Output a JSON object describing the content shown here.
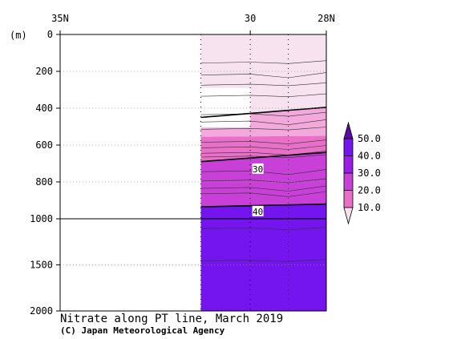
{
  "chart_data": {
    "type": "heatmap",
    "title": "Nitrate along PT line, March 2019",
    "credit": "(C) Japan Meteorological Agency",
    "x_axis": {
      "ticks": [
        {
          "value": 35,
          "label": "35N"
        },
        {
          "value": 30,
          "label": "30"
        },
        {
          "value": 28,
          "label": "28N"
        }
      ],
      "range": [
        35,
        28
      ]
    },
    "y_axis": {
      "unit_label": "(m)",
      "ticks": [
        0,
        200,
        400,
        600,
        800,
        1000,
        1500,
        2000
      ],
      "range": [
        0,
        2000
      ],
      "scale_break": 1000
    },
    "colorbar": {
      "levels": [
        10.0,
        20.0,
        30.0,
        40.0,
        50.0
      ],
      "labels": [
        "10.0",
        "20.0",
        "30.0",
        "40.0",
        "50.0"
      ],
      "colors": [
        "#f7e2f0",
        "#ea6fc8",
        "#c840d8",
        "#9a1ee8",
        "#7414ee",
        "#580ca0"
      ]
    },
    "contour_labels": [
      {
        "value": "30",
        "lat": 29.8,
        "depth": 730
      },
      {
        "value": "40",
        "lat": 29.8,
        "depth": 960
      }
    ],
    "stations_lat": [
      31.3,
      30.0,
      29.0,
      28.0
    ],
    "data_region": {
      "lat_range": [
        31.3,
        28.0
      ],
      "depth_range": [
        0,
        2000
      ]
    },
    "grid": "dotted"
  }
}
